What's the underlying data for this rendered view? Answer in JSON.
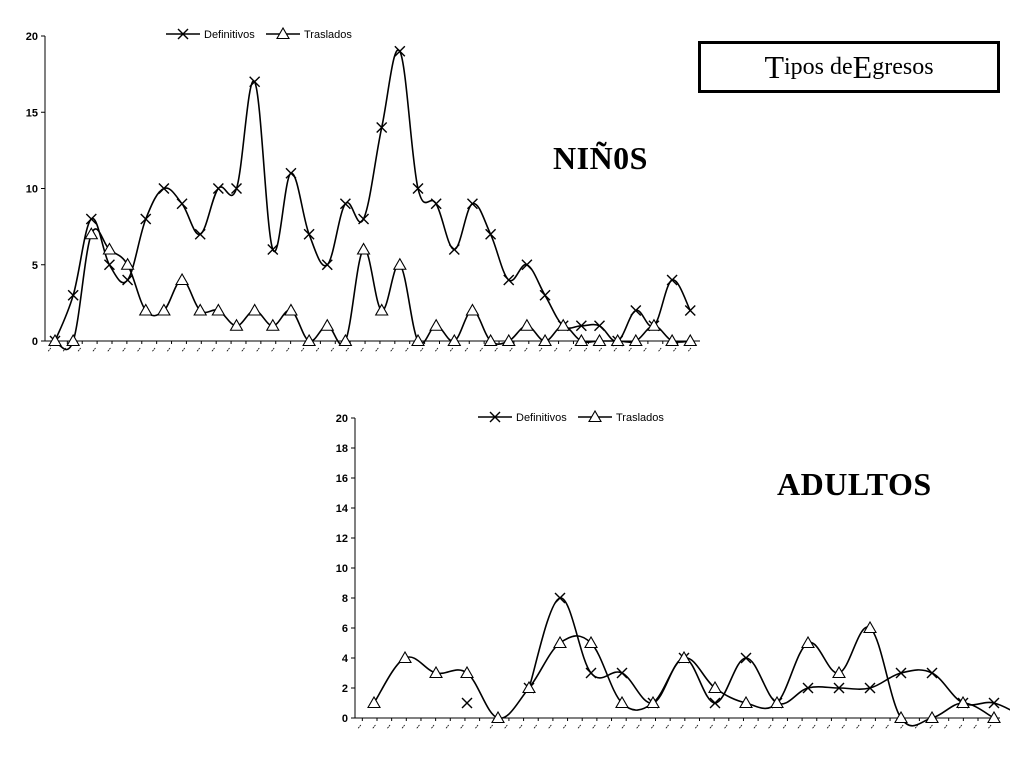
{
  "page_title": {
    "first_initial": "T",
    "first_rest": "ipos de ",
    "second_initial": "E",
    "second_rest": "gresos"
  },
  "labels": {
    "ninos": "NIÑ0S",
    "adultos": "ADULTOS"
  },
  "chart_data": [
    {
      "id": "ninos",
      "type": "line",
      "title": "",
      "xlabel": "",
      "ylabel": "",
      "ylim": [
        0,
        20
      ],
      "yticks": [
        0,
        5,
        10,
        15,
        20
      ],
      "grid": false,
      "legend": "top",
      "x_tick_labels": [
        "--",
        "--",
        "--",
        "--",
        "--",
        "--",
        "--",
        "--",
        "--",
        "--",
        "--",
        "--",
        "--",
        "--",
        "--",
        "--",
        "--",
        "--",
        "--",
        "--",
        "--",
        "--",
        "--",
        "--",
        "--",
        "--",
        "--",
        "--",
        "--",
        "--",
        "--",
        "--",
        "--",
        "--",
        "--",
        "--",
        "--",
        "--",
        "--",
        "--",
        "--",
        "--",
        "--",
        "--"
      ],
      "series": [
        {
          "name": "Definitivos",
          "marker": "x",
          "values": [
            0,
            3,
            8,
            5,
            4,
            8,
            10,
            9,
            7,
            10,
            10,
            17,
            6,
            11,
            7,
            5,
            9,
            8,
            14,
            19,
            10,
            9,
            6,
            9,
            7,
            4,
            5,
            3,
            1,
            1,
            1,
            0,
            2,
            1,
            4,
            2
          ]
        },
        {
          "name": "Traslados",
          "marker": "triangle",
          "values": [
            0,
            0,
            7,
            6,
            5,
            2,
            2,
            4,
            2,
            2,
            1,
            2,
            1,
            2,
            0,
            1,
            0,
            6,
            2,
            5,
            0,
            1,
            0,
            2,
            0,
            0,
            1,
            0,
            1,
            0,
            0,
            0,
            0,
            1,
            0,
            0
          ]
        }
      ]
    },
    {
      "id": "adultos",
      "type": "line",
      "title": "",
      "xlabel": "",
      "ylabel": "",
      "ylim": [
        0,
        20
      ],
      "yticks": [
        0,
        2,
        4,
        6,
        8,
        10,
        12,
        14,
        16,
        18,
        20
      ],
      "grid": false,
      "legend": "top",
      "x_tick_labels": [
        "--",
        "--",
        "--",
        "--",
        "--",
        "--",
        "--",
        "--",
        "--",
        "--",
        "--",
        "--",
        "--",
        "--",
        "--",
        "--",
        "--",
        "--",
        "--",
        "--",
        "--",
        "--",
        "--",
        "--",
        "--",
        "--",
        "--",
        "--",
        "--",
        "--",
        "--",
        "--",
        "--",
        "--",
        "--",
        "--",
        "--",
        "--",
        "--",
        "--",
        "--",
        "--",
        "--",
        "--"
      ],
      "series": [
        {
          "name": "Definitivos",
          "marker": "x",
          "values": [
            null,
            null,
            null,
            1,
            null,
            2,
            8,
            3,
            3,
            1,
            4,
            1,
            4,
            1,
            2,
            2,
            2,
            3,
            3,
            1,
            1,
            0
          ]
        },
        {
          "name": "Traslados",
          "marker": "triangle",
          "values": [
            1,
            4,
            3,
            3,
            0,
            2,
            5,
            5,
            1,
            1,
            4,
            2,
            1,
            1,
            5,
            3,
            6,
            0,
            0,
            1,
            0,
            null
          ]
        }
      ]
    }
  ]
}
